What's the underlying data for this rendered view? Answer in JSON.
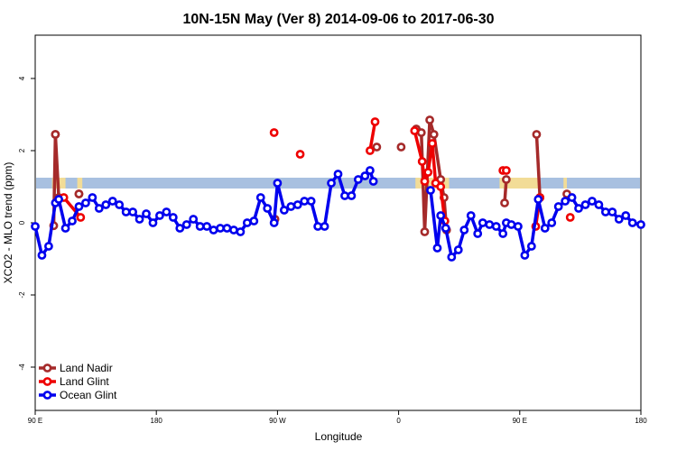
{
  "chart_data": {
    "type": "line",
    "title": "10N-15N May (Ver 8)   2014-09-06 to 2017-06-30",
    "xlabel": "Longitude",
    "ylabel": "XCO2 - MLO trend (ppm)",
    "xlim": [
      -90,
      270
    ],
    "ylim": [
      -5.2,
      5.2
    ],
    "x_ticks": [
      {
        "value": -90,
        "label": "90 E"
      },
      {
        "value": -18,
        "label": "180"
      },
      {
        "value": 54,
        "label": "90 W"
      },
      {
        "value": 126,
        "label": "0"
      },
      {
        "value": 198,
        "label": "90 E"
      },
      {
        "value": 270,
        "label": "180"
      }
    ],
    "y_ticks": [
      {
        "value": -4,
        "label": "-4"
      },
      {
        "value": -2,
        "label": "-2"
      },
      {
        "value": 0,
        "label": "0"
      },
      {
        "value": 2,
        "label": "2"
      },
      {
        "value": 4,
        "label": "4"
      }
    ],
    "reference_band": {
      "y_low": 0.95,
      "y_high": 1.25,
      "color": "#a8c0e0"
    },
    "land_highlight_color": "#ffe08a",
    "legend_position": "bottom-left",
    "series": [
      {
        "name": "Land Nadir",
        "color": "#a52a2a",
        "segments": [
          [
            [
              -78,
              2.45
            ]
          ],
          [
            [
              -64,
              0.8
            ]
          ],
          [
            [
              52.5,
              0.1
            ]
          ],
          [
            [
              113,
              2.1
            ]
          ],
          [
            [
              -79,
              -0.08
            ],
            [
              -78,
              2.45
            ],
            [
              -76,
              0.7
            ]
          ],
          [
            [
              -64,
              0.8
            ]
          ],
          [
            [
              127.5,
              2.1
            ]
          ],
          [
            [
              136.5,
              2.6
            ],
            [
              139.5,
              2.5
            ],
            [
              141.5,
              -0.25
            ],
            [
              144.5,
              2.85
            ],
            [
              147,
              2.45
            ],
            [
              151,
              1.2
            ],
            [
              153,
              0.7
            ],
            [
              154.5,
              -0.2
            ]
          ],
          [
            [
              189,
              0.55
            ],
            [
              190,
              1.2
            ]
          ],
          [
            [
              208,
              2.45
            ],
            [
              210,
              0.7
            ]
          ],
          [
            [
              226,
              0.8
            ]
          ]
        ]
      },
      {
        "name": "Land Glint",
        "color": "#ee0000",
        "segments": [
          [
            [
              -73,
              0.7
            ],
            [
              -63,
              0.15
            ]
          ],
          [
            [
              52,
              2.5
            ]
          ],
          [
            [
              67.5,
              1.9
            ]
          ],
          [
            [
              109,
              2.0
            ],
            [
              112,
              2.8
            ]
          ],
          [
            [
              135.5,
              2.55
            ],
            [
              140,
              1.7
            ],
            [
              141.5,
              1.15
            ],
            [
              143.5,
              1.4
            ],
            [
              146,
              2.2
            ],
            [
              148,
              1.1
            ],
            [
              151,
              1.0
            ],
            [
              153.5,
              0.05
            ]
          ],
          [
            [
              188,
              1.45
            ],
            [
              190,
              1.45
            ]
          ],
          [
            [
              207.5,
              -0.1
            ],
            [
              210,
              0.7
            ]
          ],
          [
            [
              228,
              0.15
            ]
          ]
        ]
      },
      {
        "name": "Ocean Glint",
        "color": "#0000ee",
        "segments": [
          [
            [
              -90,
              -0.1
            ],
            [
              -86,
              -0.9
            ],
            [
              -82,
              -0.65
            ],
            [
              -78,
              0.55
            ],
            [
              -76,
              0.65
            ],
            [
              -72,
              -0.15
            ],
            [
              -68,
              0.05
            ],
            [
              -64,
              0.45
            ],
            [
              -60,
              0.55
            ],
            [
              -56,
              0.7
            ],
            [
              -52,
              0.4
            ],
            [
              -48,
              0.5
            ],
            [
              -44,
              0.6
            ],
            [
              -40,
              0.5
            ],
            [
              -36,
              0.3
            ],
            [
              -32,
              0.3
            ],
            [
              -28,
              0.1
            ],
            [
              -24,
              0.25
            ],
            [
              -20,
              0.0
            ],
            [
              -16,
              0.2
            ],
            [
              -12,
              0.3
            ],
            [
              -8,
              0.15
            ],
            [
              -4,
              -0.15
            ],
            [
              0,
              -0.05
            ],
            [
              4,
              0.1
            ],
            [
              8,
              -0.1
            ],
            [
              12,
              -0.1
            ],
            [
              16,
              -0.2
            ],
            [
              20,
              -0.15
            ],
            [
              24,
              -0.15
            ],
            [
              28,
              -0.2
            ],
            [
              32,
              -0.25
            ],
            [
              36,
              0.0
            ],
            [
              40,
              0.05
            ],
            [
              44,
              0.7
            ],
            [
              48,
              0.4
            ],
            [
              52,
              0.0
            ],
            [
              54,
              1.1
            ],
            [
              58,
              0.35
            ],
            [
              62,
              0.45
            ],
            [
              66,
              0.5
            ],
            [
              70,
              0.6
            ],
            [
              74,
              0.6
            ],
            [
              78,
              -0.1
            ],
            [
              82,
              -0.1
            ],
            [
              86,
              1.1
            ],
            [
              90,
              1.35
            ],
            [
              94,
              0.75
            ],
            [
              98,
              0.75
            ],
            [
              102,
              1.2
            ],
            [
              106,
              1.3
            ],
            [
              109,
              1.45
            ],
            [
              111,
              1.15
            ]
          ],
          [
            [
              145,
              0.9
            ],
            [
              149,
              -0.7
            ],
            [
              151,
              0.2
            ],
            [
              154,
              -0.15
            ],
            [
              157.5,
              -0.95
            ],
            [
              161.5,
              -0.75
            ],
            [
              165,
              -0.2
            ],
            [
              169,
              0.2
            ],
            [
              173,
              -0.3
            ],
            [
              176,
              0.0
            ],
            [
              180,
              -0.05
            ],
            [
              184,
              -0.1
            ],
            [
              188,
              -0.3
            ],
            [
              190,
              0.0
            ],
            [
              193,
              -0.05
            ],
            [
              197,
              -0.1
            ],
            [
              201,
              -0.9
            ],
            [
              205,
              -0.65
            ],
            [
              209,
              0.65
            ],
            [
              213,
              -0.15
            ],
            [
              217,
              0.0
            ],
            [
              221,
              0.45
            ],
            [
              225,
              0.6
            ],
            [
              229,
              0.7
            ],
            [
              233,
              0.4
            ],
            [
              237,
              0.5
            ],
            [
              241,
              0.6
            ],
            [
              245,
              0.5
            ],
            [
              249,
              0.3
            ],
            [
              253,
              0.3
            ],
            [
              257,
              0.1
            ],
            [
              261,
              0.2
            ],
            [
              265,
              0.0
            ],
            [
              270,
              -0.05
            ]
          ]
        ]
      }
    ]
  }
}
